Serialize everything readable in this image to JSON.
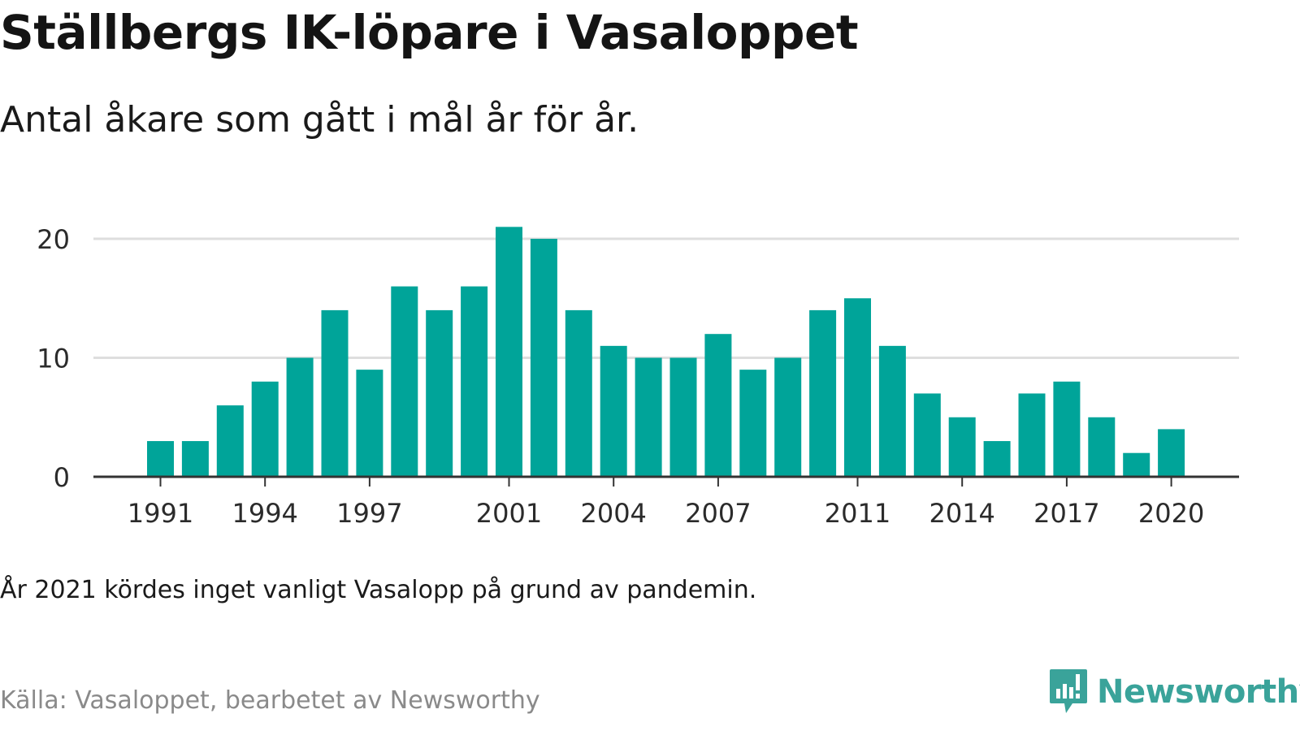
{
  "title": "Ställbergs IK-löpare i Vasaloppet",
  "subtitle": "Antal åkare som gått i mål år för år.",
  "note": "År 2021 kördes inget vanligt Vasalopp på grund av pandemin.",
  "source": "Källa: Vasaloppet, bearbetet av Newsworthy",
  "brand": {
    "name": "Newsworthy",
    "icon": "newsworthy-logo-icon",
    "color": "#3aa39a"
  },
  "chart_data": {
    "type": "bar",
    "x": [
      1991,
      1992,
      1993,
      1994,
      1995,
      1996,
      1997,
      1998,
      1999,
      2000,
      2001,
      2002,
      2003,
      2004,
      2005,
      2006,
      2007,
      2008,
      2009,
      2010,
      2011,
      2012,
      2013,
      2014,
      2015,
      2016,
      2017,
      2018,
      2019,
      2020
    ],
    "values": [
      3,
      3,
      6,
      8,
      10,
      14,
      9,
      16,
      14,
      16,
      21,
      20,
      14,
      11,
      10,
      10,
      12,
      9,
      10,
      14,
      15,
      11,
      7,
      5,
      3,
      7,
      8,
      5,
      2,
      4
    ],
    "x_ticks": [
      "1991",
      "1994",
      "1997",
      "2001",
      "2004",
      "2007",
      "2011",
      "2014",
      "2017",
      "2020"
    ],
    "y_ticks": [
      "0",
      "10",
      "20"
    ],
    "ylim": [
      0,
      20
    ],
    "grid": "horizontal",
    "bar_color": "#00a499",
    "grid_color": "#dedede",
    "axis_color": "#333333",
    "title": "Ställbergs IK-löpare i Vasaloppet",
    "xlabel": "",
    "ylabel": ""
  }
}
